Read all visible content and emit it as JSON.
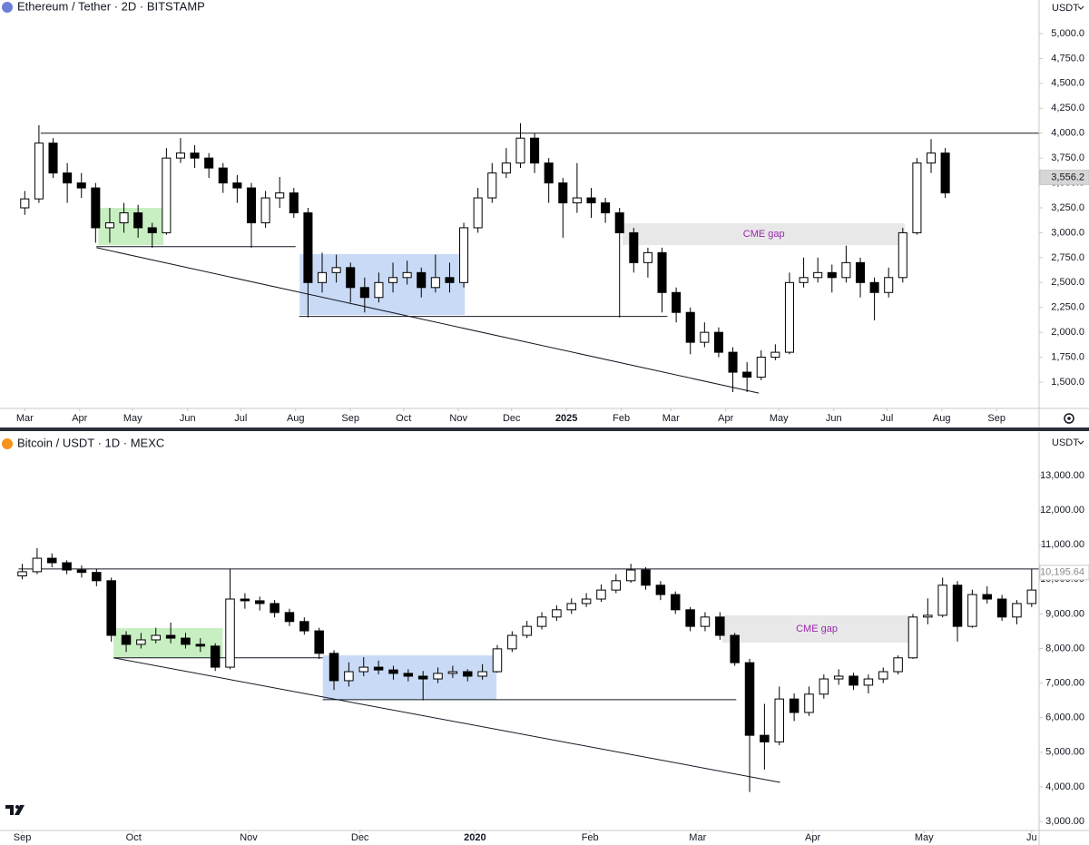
{
  "chart_data": [
    {
      "type": "candlestick",
      "title": "Ethereum / Tether · 2D · BITSTAMP",
      "currency": "USDT",
      "xlim": [
        -14,
        573
      ],
      "xticks": [
        {
          "value": 0,
          "label": "Mar"
        },
        {
          "value": 31,
          "label": "Apr"
        },
        {
          "value": 61,
          "label": "May"
        },
        {
          "value": 92,
          "label": "Jun"
        },
        {
          "value": 122,
          "label": "Jul"
        },
        {
          "value": 153,
          "label": "Aug"
        },
        {
          "value": 184,
          "label": "Sep"
        },
        {
          "value": 214,
          "label": "Oct"
        },
        {
          "value": 245,
          "label": "Nov"
        },
        {
          "value": 275,
          "label": "Dec"
        },
        {
          "value": 306,
          "label": "2025"
        },
        {
          "value": 337,
          "label": "Feb"
        },
        {
          "value": 365,
          "label": "Mar"
        },
        {
          "value": 396,
          "label": "Apr"
        },
        {
          "value": 426,
          "label": "May"
        },
        {
          "value": 457,
          "label": "Jun"
        },
        {
          "value": 487,
          "label": "Jul"
        },
        {
          "value": 518,
          "label": "Aug"
        },
        {
          "value": 549,
          "label": "Sep"
        }
      ],
      "ylim": [
        1236,
        5337
      ],
      "yticks": [
        {
          "value": 1500,
          "label": "1,500.0"
        },
        {
          "value": 1750,
          "label": "1,750.0"
        },
        {
          "value": 2000,
          "label": "2,000.0"
        },
        {
          "value": 2250,
          "label": "2,250.0"
        },
        {
          "value": 2500,
          "label": "2,500.0"
        },
        {
          "value": 2750,
          "label": "2,750.0"
        },
        {
          "value": 3000,
          "label": "3,000.0"
        },
        {
          "value": 3250,
          "label": "3,250.0"
        },
        {
          "value": 3500,
          "label": "3,500.0"
        },
        {
          "value": 3750,
          "label": "3,750.0"
        },
        {
          "value": 4000,
          "label": "4,000.0"
        },
        {
          "value": 4250,
          "label": "4,250.0"
        },
        {
          "value": 4500,
          "label": "4,500.0"
        },
        {
          "value": 4750,
          "label": "4,750.0"
        },
        {
          "value": 5000,
          "label": "5,000.0"
        }
      ],
      "grid": false,
      "up_color": "#ffffff",
      "down_color": "#000000",
      "wick_color": "#000000",
      "candles": {
        "x": [
          0,
          8,
          16,
          24,
          32,
          40,
          48,
          56,
          64,
          72,
          80,
          88,
          96,
          104,
          112,
          120,
          128,
          136,
          144,
          152,
          160,
          168,
          176,
          184,
          192,
          200,
          208,
          216,
          224,
          232,
          240,
          248,
          256,
          264,
          272,
          280,
          288,
          296,
          304,
          312,
          320,
          328,
          336,
          344,
          352,
          360,
          368,
          376,
          384,
          392,
          400,
          408,
          416,
          424,
          432,
          440,
          448,
          456,
          464,
          472,
          480,
          488,
          496,
          504,
          512,
          520
        ],
        "open": [
          3250,
          3340,
          3900,
          3600,
          3500,
          3450,
          3050,
          3100,
          3200,
          3050,
          3000,
          3750,
          3800,
          3750,
          3650,
          3500,
          3450,
          3100,
          3350,
          3400,
          3200,
          2500,
          2600,
          2650,
          2450,
          2350,
          2500,
          2550,
          2600,
          2450,
          2550,
          2500,
          3050,
          3350,
          3600,
          3700,
          3950,
          3700,
          3500,
          3300,
          3350,
          3300,
          3200,
          3000,
          2700,
          2800,
          2400,
          2200,
          1900,
          2000,
          1800,
          1600,
          1550,
          1750,
          1800,
          2500,
          2550,
          2600,
          2550,
          2700,
          2500,
          2400,
          2550,
          3000,
          3700,
          3800
        ],
        "high": [
          3420,
          4080,
          3950,
          3700,
          3600,
          3500,
          3250,
          3300,
          3280,
          3100,
          3850,
          3950,
          3880,
          3800,
          3700,
          3580,
          3500,
          3420,
          3560,
          3450,
          3250,
          2800,
          2780,
          2700,
          2550,
          2600,
          2700,
          2720,
          2650,
          2780,
          2700,
          3100,
          3450,
          3700,
          3850,
          4100,
          4000,
          3750,
          3550,
          3700,
          3450,
          3350,
          3250,
          3050,
          2850,
          2850,
          2450,
          2250,
          2100,
          2050,
          1850,
          1700,
          1820,
          1880,
          2600,
          2750,
          2750,
          2680,
          2870,
          2750,
          2550,
          2650,
          3050,
          3750,
          3940,
          3850
        ],
        "low": [
          3180,
          3300,
          3550,
          3300,
          3350,
          2900,
          2900,
          3000,
          2950,
          2850,
          2980,
          3700,
          3650,
          3550,
          3400,
          3300,
          2850,
          3050,
          3250,
          3150,
          2150,
          2400,
          2500,
          2300,
          2200,
          2300,
          2400,
          2480,
          2350,
          2400,
          2400,
          2450,
          3000,
          3300,
          3550,
          3650,
          3600,
          3300,
          2950,
          3200,
          3150,
          3100,
          2150,
          2600,
          2550,
          2200,
          2100,
          1780,
          1850,
          1750,
          1400,
          1400,
          1520,
          1720,
          1780,
          2450,
          2500,
          2400,
          2500,
          2350,
          2120,
          2350,
          2500,
          2980,
          3600,
          3350
        ],
        "close": [
          3340,
          3900,
          3600,
          3500,
          3450,
          3050,
          3100,
          3200,
          3050,
          3000,
          3750,
          3800,
          3750,
          3650,
          3500,
          3450,
          3100,
          3350,
          3400,
          3200,
          2500,
          2600,
          2650,
          2450,
          2350,
          2500,
          2550,
          2600,
          2450,
          2550,
          2500,
          3050,
          3350,
          3600,
          3700,
          3950,
          3700,
          3500,
          3300,
          3350,
          3300,
          3200,
          3000,
          2700,
          2800,
          2400,
          2200,
          1900,
          2000,
          1800,
          1600,
          1550,
          1750,
          1800,
          2500,
          2550,
          2600,
          2550,
          2700,
          2500,
          2400,
          2550,
          3000,
          3700,
          3800,
          3400
        ]
      },
      "boxes": [
        {
          "x": [
            41.5,
            78.4
          ],
          "y": [
            2875,
            3250
          ],
          "color": "#c8efc2"
        },
        {
          "x": [
            155.3,
            248.6
          ],
          "y": [
            2175,
            2785
          ],
          "color": "#c9daf6"
        }
      ],
      "gap": {
        "label": "CME gap",
        "x": [
          337.8,
          497.2
        ],
        "y": [
          2876,
          3095
        ],
        "color": "#e8e8e8",
        "label_color": "#9c27b0"
      },
      "lines": [
        {
          "x": [
            9,
            573
          ],
          "y": [
            4000,
            4000
          ]
        },
        {
          "x": [
            40.5,
            153
          ],
          "y": [
            2860,
            2860
          ]
        },
        {
          "x": [
            155,
            363
          ],
          "y": [
            2160,
            2160
          ]
        },
        {
          "x": [
            40.5,
            414.7
          ],
          "y": [
            2850,
            1390
          ]
        }
      ],
      "last_price": {
        "value": 3556.2,
        "label": "3,556.2",
        "background": "#d6d6d6",
        "text_color": "#131722"
      }
    },
    {
      "type": "candlestick",
      "title": "Bitcoin / USDT · 1D · MEXC",
      "currency": "USDT",
      "xlim": [
        -6,
        274
      ],
      "xticks": [
        {
          "value": 0,
          "label": "Sep"
        },
        {
          "value": 30,
          "label": "Oct"
        },
        {
          "value": 61,
          "label": "Nov"
        },
        {
          "value": 91,
          "label": "Dec"
        },
        {
          "value": 122,
          "label": "2020"
        },
        {
          "value": 153,
          "label": "Feb"
        },
        {
          "value": 182,
          "label": "Mar"
        },
        {
          "value": 213,
          "label": "Apr"
        },
        {
          "value": 243,
          "label": "May"
        },
        {
          "value": 272,
          "label": "Ju"
        }
      ],
      "ylim": [
        2738,
        14207
      ],
      "yticks": [
        {
          "value": 3000,
          "label": "3,000.00"
        },
        {
          "value": 4000,
          "label": "4,000.00"
        },
        {
          "value": 5000,
          "label": "5,000.00"
        },
        {
          "value": 6000,
          "label": "6,000.00"
        },
        {
          "value": 7000,
          "label": "7,000.00"
        },
        {
          "value": 8000,
          "label": "8,000.00"
        },
        {
          "value": 9000,
          "label": "9,000.00"
        },
        {
          "value": 10000,
          "label": "10,000.00"
        },
        {
          "value": 11000,
          "label": "11,000.00"
        },
        {
          "value": 12000,
          "label": "12,000.00"
        },
        {
          "value": 13000,
          "label": "13,000.00"
        }
      ],
      "grid": false,
      "up_color": "#ffffff",
      "down_color": "#000000",
      "wick_color": "#000000",
      "candles": {
        "x": [
          0,
          4,
          8,
          12,
          16,
          20,
          24,
          28,
          32,
          36,
          40,
          44,
          48,
          52,
          56,
          60,
          64,
          68,
          72,
          76,
          80,
          84,
          88,
          92,
          96,
          100,
          104,
          108,
          112,
          116,
          120,
          124,
          128,
          132,
          136,
          140,
          144,
          148,
          152,
          156,
          160,
          164,
          168,
          172,
          176,
          180,
          184,
          188,
          192,
          196,
          200,
          204,
          208,
          212,
          216,
          220,
          224,
          228,
          232,
          236,
          240,
          244,
          248,
          252,
          256,
          260,
          264,
          268,
          272
        ],
        "open": [
          10100,
          10220,
          10610,
          10480,
          10270,
          10200,
          9960,
          8380,
          8120,
          8250,
          8380,
          8300,
          8120,
          8070,
          7460,
          9430,
          9380,
          9300,
          9040,
          8780,
          8510,
          7860,
          7070,
          7330,
          7460,
          7380,
          7280,
          7200,
          7120,
          7280,
          7330,
          7200,
          7330,
          7990,
          8380,
          8640,
          8910,
          9120,
          9300,
          9430,
          9690,
          9960,
          10270,
          9830,
          9560,
          9120,
          8640,
          8910,
          8380,
          7590,
          5490,
          5300,
          6540,
          6150,
          6680,
          7120,
          7200,
          6940,
          7120,
          7330,
          7730,
          8910,
          8960,
          9830,
          8640,
          9560,
          9430,
          8910,
          9300
        ],
        "high": [
          10450,
          10900,
          10750,
          10550,
          10400,
          10300,
          10050,
          8500,
          8450,
          8600,
          8750,
          8450,
          8300,
          8150,
          10300,
          9600,
          9500,
          9400,
          9150,
          8900,
          8600,
          7950,
          7600,
          7750,
          7650,
          7500,
          7400,
          7350,
          7450,
          7500,
          7400,
          7550,
          8100,
          8500,
          8800,
          9050,
          9250,
          9450,
          9600,
          9850,
          10150,
          10450,
          10350,
          9950,
          9650,
          9200,
          9050,
          9050,
          8450,
          7700,
          6400,
          6900,
          6700,
          6900,
          7250,
          7400,
          7300,
          7250,
          7450,
          7800,
          9000,
          9450,
          10050,
          9950,
          9700,
          9800,
          9550,
          9400,
          10300
        ],
        "low": [
          10000,
          10150,
          10350,
          10150,
          10050,
          9800,
          8200,
          7900,
          8000,
          8150,
          8150,
          8000,
          7900,
          7350,
          7400,
          9150,
          9100,
          8900,
          8650,
          8400,
          7700,
          6800,
          6900,
          7200,
          7250,
          7100,
          7050,
          6500,
          7000,
          7150,
          7050,
          7100,
          7300,
          7900,
          8300,
          8550,
          8800,
          9000,
          9200,
          9350,
          9600,
          9900,
          9700,
          9400,
          9000,
          8500,
          8500,
          8250,
          7500,
          3850,
          4500,
          5200,
          5900,
          6050,
          6550,
          6950,
          6800,
          6700,
          7000,
          7250,
          7700,
          8700,
          8900,
          8200,
          8600,
          9300,
          8800,
          8700,
          9200
        ],
        "close": [
          10220,
          10610,
          10480,
          10270,
          10200,
          9960,
          8380,
          8120,
          8250,
          8380,
          8300,
          8120,
          8070,
          7460,
          9430,
          9380,
          9300,
          9040,
          8780,
          8510,
          7860,
          7070,
          7330,
          7460,
          7380,
          7280,
          7200,
          7120,
          7280,
          7330,
          7200,
          7330,
          7990,
          8380,
          8640,
          8910,
          9120,
          9300,
          9430,
          9690,
          9960,
          10270,
          9830,
          9560,
          9120,
          8640,
          8910,
          8380,
          7590,
          5490,
          5300,
          6540,
          6150,
          6680,
          7120,
          7200,
          6940,
          7120,
          7330,
          7730,
          8910,
          8960,
          9830,
          8640,
          9560,
          9430,
          8910,
          9300,
          9690
        ]
      },
      "boxes": [
        {
          "x": [
            24.6,
            54
          ],
          "y": [
            7730,
            8590
          ],
          "color": "#c8efc2"
        },
        {
          "x": [
            81,
            127.8
          ],
          "y": [
            6520,
            7800
          ],
          "color": "#c9daf6"
        }
      ],
      "gap": {
        "label": "CME gap",
        "x": [
          188.7,
          239.5
        ],
        "y": [
          8170,
          8960
        ],
        "color": "#e8e8e8",
        "label_color": "#9c27b0"
      },
      "lines": [
        {
          "x": [
            -1,
            274
          ],
          "y": [
            10300,
            10300
          ]
        },
        {
          "x": [
            24.6,
            81
          ],
          "y": [
            7730,
            7730
          ]
        },
        {
          "x": [
            81,
            192.4
          ],
          "y": [
            6520,
            6520
          ]
        },
        {
          "x": [
            24.6,
            204.2
          ],
          "y": [
            7730,
            4130
          ]
        }
      ],
      "last_price": {
        "value": 10195.64,
        "label": "10,195.64",
        "background": "#ffffff",
        "text_color": "#8a8a8a"
      }
    }
  ]
}
